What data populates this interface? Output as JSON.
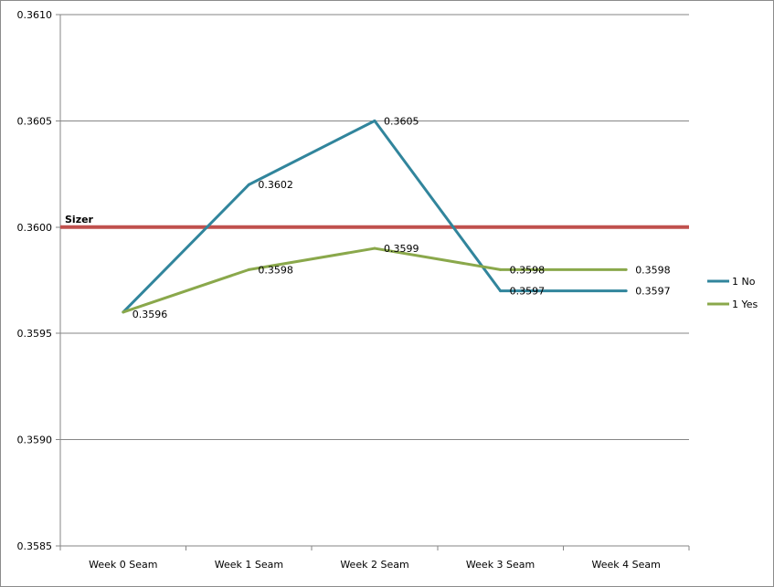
{
  "chart_data": {
    "type": "line",
    "categories": [
      "Week 0 Seam",
      "Week 1 Seam",
      "Week 2 Seam",
      "Week 3 Seam",
      "Week 4 Seam"
    ],
    "series": [
      {
        "name": "1 No",
        "color": "#31859c",
        "values": [
          0.3596,
          0.3602,
          0.3605,
          0.3597,
          0.3597
        ],
        "labels": [
          "0.3596",
          "0.3602",
          "0.3605",
          "0.3597",
          "0.3597"
        ]
      },
      {
        "name": "1 Yes",
        "color": "#8aa84b",
        "values": [
          0.3596,
          0.3598,
          0.3599,
          0.3598,
          0.3598
        ],
        "labels": [
          "",
          "0.3598",
          "0.3599",
          "0.3598",
          "0.3598"
        ]
      }
    ],
    "reference_line": {
      "label": "Sizer",
      "value": 0.36,
      "color": "#c0504d"
    },
    "ylim": [
      0.3585,
      0.361
    ],
    "yticks": [
      "0.3585",
      "0.3590",
      "0.3595",
      "0.3600",
      "0.3605",
      "0.3610"
    ],
    "grid": "horizontal",
    "legend": "right",
    "title": "",
    "xlabel": "",
    "ylabel": ""
  }
}
